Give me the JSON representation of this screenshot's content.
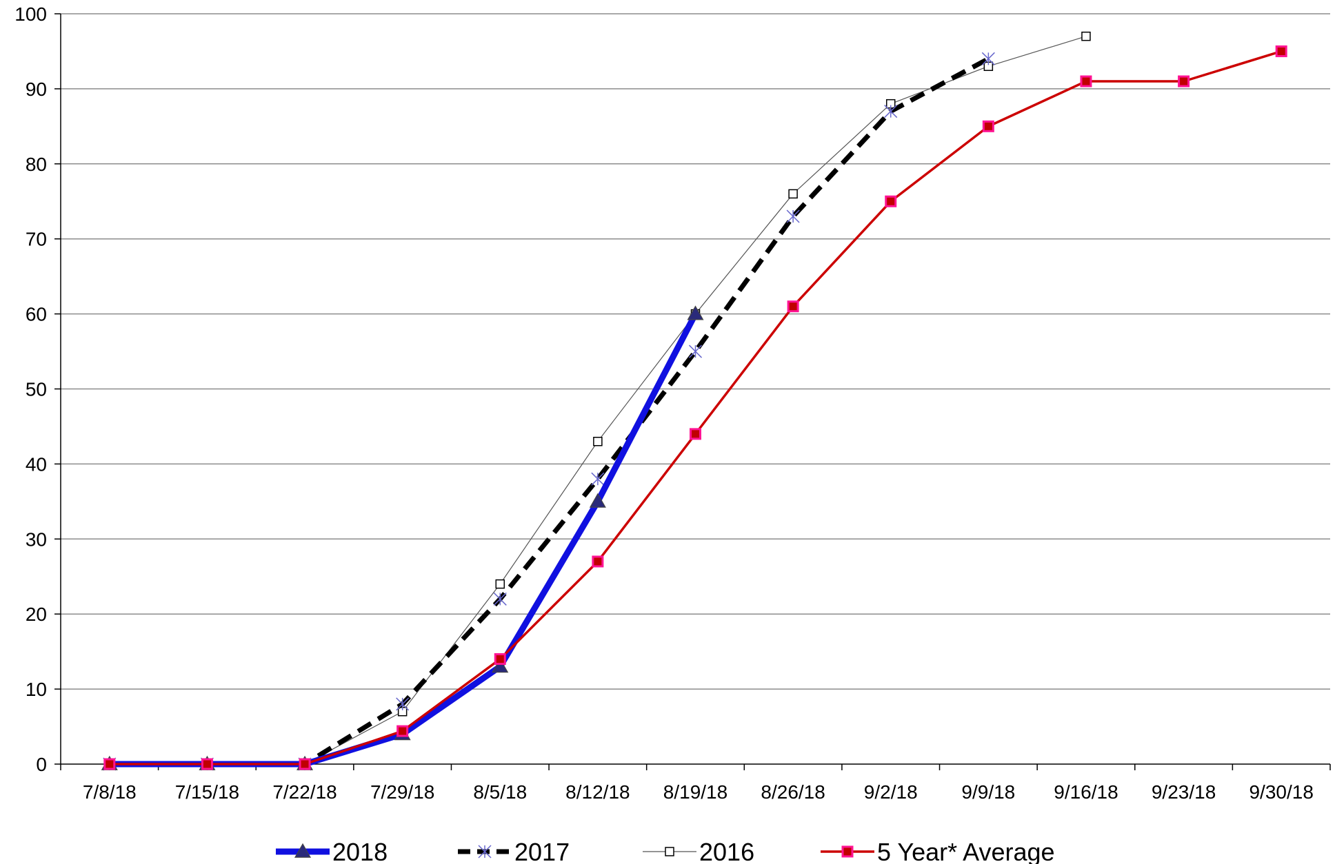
{
  "chart_data": {
    "type": "line",
    "categories": [
      "7/8/18",
      "7/15/18",
      "7/22/18",
      "7/29/18",
      "8/5/18",
      "8/12/18",
      "8/19/18",
      "8/26/18",
      "9/2/18",
      "9/9/18",
      "9/16/18",
      "9/23/18",
      "9/30/18"
    ],
    "ylim": [
      0,
      100
    ],
    "yticks": [
      0,
      10,
      20,
      30,
      40,
      50,
      60,
      70,
      80,
      90,
      100
    ],
    "grid": true,
    "legend_position": "bottom",
    "series": [
      {
        "name": "2018",
        "color": "#1010e0",
        "style": "solid-thick",
        "marker": "triangle",
        "values": [
          0,
          0,
          0,
          4,
          13,
          35,
          60,
          null,
          null,
          null,
          null,
          null,
          null
        ]
      },
      {
        "name": "2017",
        "color": "#000000",
        "style": "dashed-thick",
        "marker": "asterisk",
        "values": [
          0,
          0,
          0,
          8,
          22,
          38,
          55,
          73,
          87,
          94,
          null,
          null,
          null
        ]
      },
      {
        "name": "2016",
        "color": "#555555",
        "style": "solid-thin",
        "marker": "open-square",
        "values": [
          0,
          0,
          0,
          7,
          24,
          43,
          60,
          76,
          88,
          93,
          97,
          null,
          null
        ]
      },
      {
        "name": "5 Year* Average",
        "color": "#cc0000",
        "marker_color": "#ff1493",
        "style": "solid",
        "marker": "filled-square",
        "values": [
          0,
          0,
          0,
          4.4,
          14,
          27,
          44,
          61,
          75,
          85,
          91,
          91,
          95
        ]
      }
    ]
  }
}
